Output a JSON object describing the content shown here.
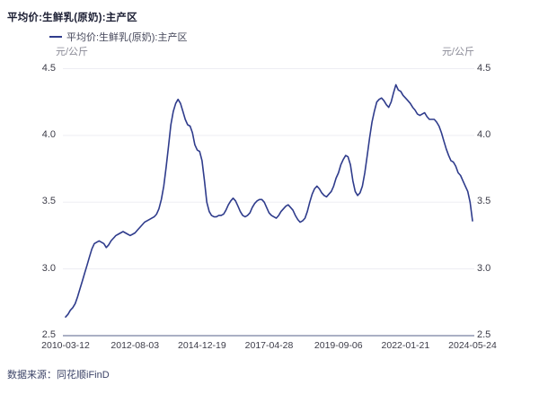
{
  "header": {
    "title": "平均价:生鲜乳(原奶):主产区"
  },
  "legend": {
    "series_label": "平均价:生鲜乳(原奶):主产区"
  },
  "axes": {
    "y_unit_left": "元/公斤",
    "y_unit_right": "元/公斤"
  },
  "footer": {
    "source": "数据来源：同花顺iFinD"
  },
  "colors": {
    "line": "#2f3c8c",
    "title": "#1b1e33",
    "legend": "#45475a",
    "tick": "#3c3c48",
    "unit": "#8a8a96",
    "grid": "#ededf3",
    "axis": "#aab0c4",
    "source": "#3d4468",
    "bg": "#ffffff"
  },
  "chart_data": {
    "type": "line",
    "title": "平均价:生鲜乳(原奶):主产区",
    "series_name": "平均价:生鲜乳(原奶):主产区",
    "unit": "元/公斤",
    "ylim": [
      2.5,
      4.5
    ],
    "yticks": [
      2.5,
      3.0,
      3.5,
      4.0,
      4.5
    ],
    "grid": "horizontal",
    "legend_position": "top-left",
    "xtick_labels": [
      "2010-03-12",
      "2012-08-03",
      "2014-12-19",
      "2017-04-28",
      "2019-09-06",
      "2022-01-21",
      "2024-05-24"
    ],
    "xtick_indices": [
      0,
      29,
      57,
      85,
      114,
      142,
      170
    ],
    "x_months": [
      "2010-03",
      "2010-04",
      "2010-05",
      "2010-06",
      "2010-07",
      "2010-08",
      "2010-09",
      "2010-10",
      "2010-11",
      "2010-12",
      "2011-01",
      "2011-02",
      "2011-03",
      "2011-04",
      "2011-05",
      "2011-06",
      "2011-07",
      "2011-08",
      "2011-09",
      "2011-10",
      "2011-11",
      "2011-12",
      "2012-01",
      "2012-02",
      "2012-03",
      "2012-04",
      "2012-05",
      "2012-06",
      "2012-07",
      "2012-08",
      "2012-09",
      "2012-10",
      "2012-11",
      "2012-12",
      "2013-01",
      "2013-02",
      "2013-03",
      "2013-04",
      "2013-05",
      "2013-06",
      "2013-07",
      "2013-08",
      "2013-09",
      "2013-10",
      "2013-11",
      "2013-12",
      "2014-01",
      "2014-02",
      "2014-03",
      "2014-04",
      "2014-05",
      "2014-06",
      "2014-07",
      "2014-08",
      "2014-09",
      "2014-10",
      "2014-11",
      "2014-12",
      "2015-01",
      "2015-02",
      "2015-03",
      "2015-04",
      "2015-05",
      "2015-06",
      "2015-07",
      "2015-08",
      "2015-09",
      "2015-10",
      "2015-11",
      "2015-12",
      "2016-01",
      "2016-02",
      "2016-03",
      "2016-04",
      "2016-05",
      "2016-06",
      "2016-07",
      "2016-08",
      "2016-09",
      "2016-10",
      "2016-11",
      "2016-12",
      "2017-01",
      "2017-02",
      "2017-03",
      "2017-04",
      "2017-05",
      "2017-06",
      "2017-07",
      "2017-08",
      "2017-09",
      "2017-10",
      "2017-11",
      "2017-12",
      "2018-01",
      "2018-02",
      "2018-03",
      "2018-04",
      "2018-05",
      "2018-06",
      "2018-07",
      "2018-08",
      "2018-09",
      "2018-10",
      "2018-11",
      "2018-12",
      "2019-01",
      "2019-02",
      "2019-03",
      "2019-04",
      "2019-05",
      "2019-06",
      "2019-07",
      "2019-08",
      "2019-09",
      "2019-10",
      "2019-11",
      "2019-12",
      "2020-01",
      "2020-02",
      "2020-03",
      "2020-04",
      "2020-05",
      "2020-06",
      "2020-07",
      "2020-08",
      "2020-09",
      "2020-10",
      "2020-11",
      "2020-12",
      "2021-01",
      "2021-02",
      "2021-03",
      "2021-04",
      "2021-05",
      "2021-06",
      "2021-07",
      "2021-08",
      "2021-09",
      "2021-10",
      "2021-11",
      "2021-12",
      "2022-01",
      "2022-02",
      "2022-03",
      "2022-04",
      "2022-05",
      "2022-06",
      "2022-07",
      "2022-08",
      "2022-09",
      "2022-10",
      "2022-11",
      "2022-12",
      "2023-01",
      "2023-02",
      "2023-03",
      "2023-04",
      "2023-05",
      "2023-06",
      "2023-07",
      "2023-08",
      "2023-09",
      "2023-10",
      "2023-11",
      "2023-12",
      "2024-01",
      "2024-02",
      "2024-03",
      "2024-04",
      "2024-05"
    ],
    "values": [
      2.64,
      2.66,
      2.69,
      2.71,
      2.74,
      2.79,
      2.85,
      2.91,
      2.97,
      3.03,
      3.09,
      3.15,
      3.19,
      3.2,
      3.21,
      3.2,
      3.19,
      3.16,
      3.18,
      3.21,
      3.23,
      3.25,
      3.26,
      3.27,
      3.28,
      3.27,
      3.26,
      3.25,
      3.26,
      3.27,
      3.29,
      3.31,
      3.33,
      3.35,
      3.36,
      3.37,
      3.38,
      3.39,
      3.41,
      3.45,
      3.52,
      3.62,
      3.76,
      3.92,
      4.08,
      4.18,
      4.24,
      4.27,
      4.24,
      4.18,
      4.12,
      4.08,
      4.07,
      4.02,
      3.93,
      3.89,
      3.88,
      3.81,
      3.66,
      3.5,
      3.43,
      3.4,
      3.39,
      3.39,
      3.4,
      3.4,
      3.41,
      3.44,
      3.48,
      3.51,
      3.53,
      3.51,
      3.47,
      3.43,
      3.4,
      3.39,
      3.4,
      3.42,
      3.46,
      3.49,
      3.51,
      3.52,
      3.52,
      3.5,
      3.46,
      3.42,
      3.4,
      3.39,
      3.38,
      3.4,
      3.43,
      3.45,
      3.47,
      3.48,
      3.46,
      3.44,
      3.4,
      3.37,
      3.35,
      3.36,
      3.38,
      3.43,
      3.5,
      3.56,
      3.6,
      3.62,
      3.6,
      3.57,
      3.55,
      3.54,
      3.56,
      3.58,
      3.62,
      3.68,
      3.72,
      3.78,
      3.82,
      3.85,
      3.84,
      3.78,
      3.66,
      3.58,
      3.55,
      3.57,
      3.62,
      3.72,
      3.85,
      3.98,
      4.1,
      4.18,
      4.25,
      4.27,
      4.28,
      4.26,
      4.23,
      4.21,
      4.25,
      4.32,
      4.38,
      4.34,
      4.33,
      4.3,
      4.28,
      4.26,
      4.24,
      4.21,
      4.19,
      4.16,
      4.15,
      4.16,
      4.17,
      4.14,
      4.12,
      4.12,
      4.12,
      4.1,
      4.07,
      4.02,
      3.96,
      3.9,
      3.85,
      3.81,
      3.8,
      3.77,
      3.72,
      3.7,
      3.66,
      3.62,
      3.58,
      3.5,
      3.36
    ]
  }
}
